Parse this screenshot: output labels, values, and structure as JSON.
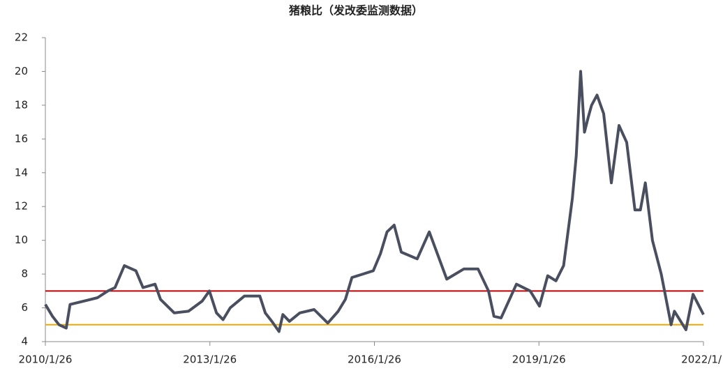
{
  "chart_data": {
    "type": "line",
    "title": "猪粮比（发改委监测数据）",
    "x": [
      2010.07,
      2010.2,
      2010.32,
      2010.45,
      2010.52,
      2011.02,
      2011.21,
      2011.34,
      2011.51,
      2011.72,
      2011.85,
      2012.07,
      2012.17,
      2012.42,
      2012.68,
      2012.93,
      2013.06,
      2013.19,
      2013.31,
      2013.44,
      2013.7,
      2013.98,
      2014.08,
      2014.2,
      2014.33,
      2014.4,
      2014.52,
      2014.71,
      2014.97,
      2015.22,
      2015.41,
      2015.54,
      2015.66,
      2015.86,
      2016.05,
      2016.18,
      2016.3,
      2016.43,
      2016.56,
      2016.85,
      2017.07,
      2017.39,
      2017.7,
      2017.96,
      2018.15,
      2018.25,
      2018.38,
      2018.66,
      2018.91,
      2019.08,
      2019.23,
      2019.38,
      2019.52,
      2019.68,
      2019.75,
      2019.83,
      2019.9,
      2019.97,
      2020.03,
      2020.13,
      2020.25,
      2020.39,
      2020.53,
      2020.67,
      2020.82,
      2020.92,
      2021.01,
      2021.14,
      2021.3,
      2021.48,
      2021.54,
      2021.75,
      2021.88,
      2022.07
    ],
    "series": [
      {
        "name": "猪粮比",
        "color": "#4a4f60",
        "values": [
          6.2,
          5.5,
          5.0,
          4.8,
          6.2,
          6.6,
          7.0,
          7.2,
          8.5,
          8.2,
          7.2,
          7.4,
          6.5,
          5.7,
          5.8,
          6.4,
          7.0,
          5.7,
          5.3,
          6.0,
          6.7,
          6.7,
          5.7,
          5.2,
          4.6,
          5.6,
          5.2,
          5.7,
          5.9,
          5.1,
          5.8,
          6.5,
          7.8,
          8.0,
          8.2,
          9.2,
          10.5,
          10.9,
          9.3,
          8.9,
          10.5,
          7.7,
          8.3,
          8.3,
          7.0,
          5.5,
          5.4,
          7.4,
          7.0,
          6.1,
          7.9,
          7.6,
          8.5,
          12.5,
          15.0,
          20.0,
          16.4,
          17.3,
          18.0,
          18.6,
          17.5,
          13.4,
          16.8,
          15.8,
          11.8,
          11.8,
          13.4,
          10.0,
          8.0,
          5.0,
          5.8,
          4.7,
          6.8,
          5.6
        ]
      }
    ],
    "hlines": [
      {
        "value": 7,
        "color": "#c00000"
      },
      {
        "value": 5,
        "color": "#f0a800"
      }
    ],
    "xlim": [
      2010.07,
      2022.07
    ],
    "xticks": [
      {
        "value": 2010.07,
        "label": "2010/1/26"
      },
      {
        "value": 2013.07,
        "label": "2013/1/26"
      },
      {
        "value": 2016.07,
        "label": "2016/1/26"
      },
      {
        "value": 2019.07,
        "label": "2019/1/26"
      },
      {
        "value": 2022.07,
        "label": "2022/1/"
      }
    ],
    "ylim": [
      4,
      22
    ],
    "yticks": [
      4,
      6,
      8,
      10,
      12,
      14,
      16,
      18,
      20,
      22
    ],
    "grid": false
  }
}
